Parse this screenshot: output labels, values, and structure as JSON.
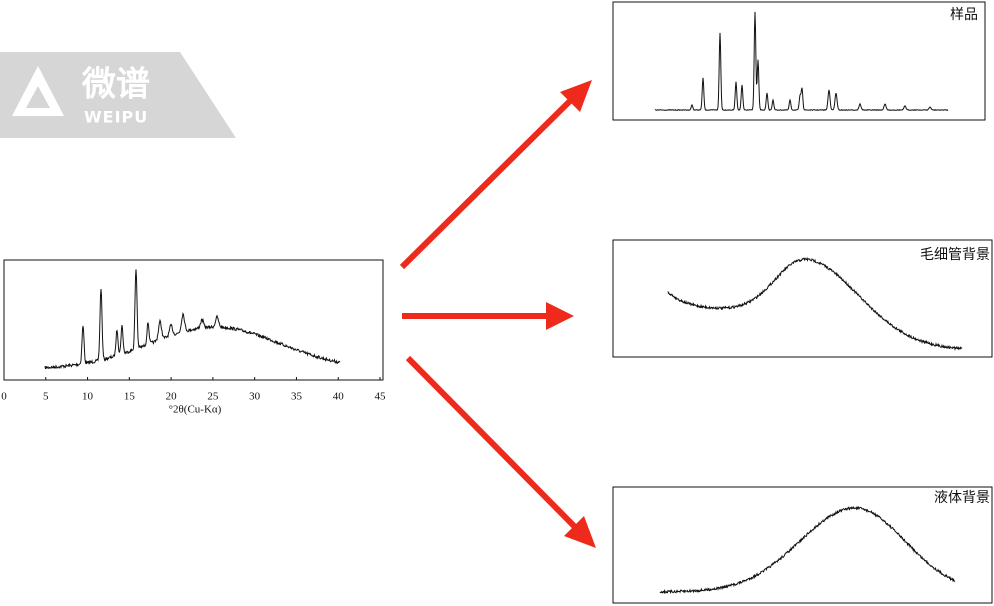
{
  "logo": {
    "name": "微谱",
    "latin": "WEIPU"
  },
  "main_plot": {
    "xlabel": "°2θ(Cu-Kα)",
    "xlim": [
      0,
      45
    ],
    "xticks": [
      0,
      5,
      10,
      15,
      20,
      25,
      30,
      35,
      40,
      45
    ]
  },
  "panels": [
    {
      "label": "样品"
    },
    {
      "label": "毛细管背景"
    },
    {
      "label": "液体背景"
    }
  ]
}
